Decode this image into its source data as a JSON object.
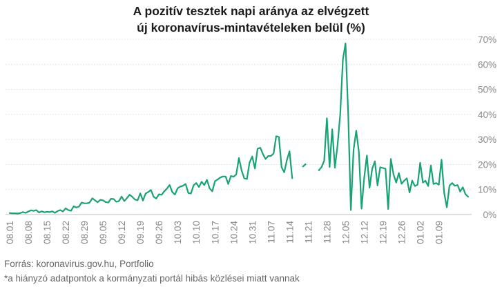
{
  "chart_data": {
    "type": "line",
    "title": [
      "A pozitív tesztek napi aránya az elvégzett",
      "új koronavírus-mintavételeken belül (%)"
    ],
    "xlabel": "",
    "ylabel": "",
    "ylim": [
      0,
      70
    ],
    "yticks": [
      0,
      10,
      20,
      30,
      40,
      50,
      60,
      70
    ],
    "ytick_labels": [
      "0%",
      "10%",
      "20%",
      "30%",
      "40%",
      "50%",
      "60%",
      "70%"
    ],
    "xtick_labels": [
      "08.01",
      "08.08",
      "08.15",
      "08.22",
      "08.29",
      "09.05",
      "09.12",
      "09.19",
      "09.26",
      "10.03",
      "10.10",
      "10.17",
      "10.24",
      "10.31",
      "11.07",
      "11.14",
      "11.21",
      "11.28",
      "12.05",
      "12.12",
      "12.19",
      "12.26",
      "01.02",
      "01.09"
    ],
    "start_month_day": "08.01",
    "grid": "horizontal",
    "legend": "none",
    "color": "#19a374",
    "series": [
      {
        "values": [
          0.6,
          0.5,
          0.5,
          0.4,
          0.6,
          1.0,
          0.7,
          1.2,
          1.7,
          1.5,
          1.8,
          0.8,
          1.3,
          0.9,
          1.1,
          1.0,
          1.3,
          0.7,
          1.4,
          1.8,
          1.2,
          2.5,
          1.8,
          1.5,
          3.3,
          2.8,
          3.2,
          4.8,
          4.5,
          4.5,
          4.8,
          6.5,
          5.7,
          4.9,
          5.9,
          5.7,
          5.0,
          4.8,
          6.3,
          6.2,
          5.1,
          5.4,
          7.2,
          5.4,
          6.6,
          7.9,
          7.1,
          6.0,
          5.7,
          8.5,
          5.6,
          8.4,
          9.0,
          9.8,
          7.1,
          6.4,
          8.1,
          7.9,
          9.3,
          10.4,
          11.8,
          9.0,
          8.0,
          10.5,
          11.2,
          11.5,
          12.2,
          8.6,
          8.4,
          11.7,
          12.6,
          11.0,
          13.1,
          11.8,
          13.9,
          10.5,
          9.3,
          13.3,
          14.0,
          14.8,
          15.2,
          15.2,
          12.2,
          15.4,
          15.1,
          16.0,
          22.6,
          17.6,
          14.5,
          14.2,
          20.8,
          23.2,
          18.4,
          26.3,
          26.7,
          24.2,
          22.2,
          23.4,
          23.4,
          24.4,
          31.3,
          31.0,
          18.9,
          16.9,
          21.8,
          25.3,
          14.5,
          null,
          null,
          null,
          19.2,
          20.1,
          null,
          null,
          null,
          null,
          17.7,
          19.0,
          21.5,
          38.5,
          19.0,
          34.1,
          18.7,
          27.6,
          40.0,
          62.0,
          68.4,
          40.0,
          1.8,
          25.8,
          33.5,
          25.1,
          2.4,
          14.6,
          23.6,
          10.7,
          18.3,
          21.3,
          11.6,
          18.9,
          18.6,
          18.3,
          2.2,
          22.2,
          16.0,
          12.8,
          16.6,
          12.3,
          13.5,
          14.5,
          8.8,
          13.6,
          11.4,
          11.9,
          20.7,
          12.8,
          13.5,
          11.4,
          19.6,
          12.2,
          12.6,
          11.9,
          21.9,
          8.6,
          2.9,
          11.6,
          12.6,
          11.5,
          11.8,
          9.2,
          10.9,
          8.1,
          7.1
        ]
      }
    ]
  },
  "footer": {
    "source": "Forrás: koronavirus.gov.hu, Portfolio",
    "note": "*a hiányzó adatpontok a kormányzati portál hibás közlései miatt vannak"
  }
}
